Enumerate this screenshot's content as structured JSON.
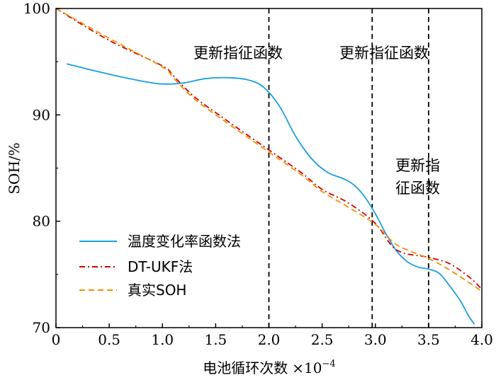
{
  "chart_data": {
    "type": "line",
    "xlabel": "电池循环次数",
    "xlabel_scale": "×10",
    "xlabel_exponent": "−4",
    "ylabel": "SOH/%",
    "xlim": [
      0,
      4.0
    ],
    "ylim": [
      70,
      100
    ],
    "x_ticks": [
      "0",
      "0.5",
      "1.0",
      "1.5",
      "2.0",
      "2.5",
      "3.0",
      "3.5",
      "4.0"
    ],
    "y_ticks": [
      "70",
      "80",
      "90",
      "100"
    ],
    "grid": false,
    "legend_position": "bottom-left",
    "vlines": [
      2.0,
      2.97,
      3.5
    ],
    "annotations": [
      "更新指征函数",
      "更新指征函数",
      "更新指",
      "征函数"
    ],
    "series": [
      {
        "name": "温度变化率函数法",
        "color": "#1a9fe0",
        "style": "solid",
        "points": [
          [
            0.1,
            94.8
          ],
          [
            0.3,
            94.3
          ],
          [
            0.6,
            93.6
          ],
          [
            0.85,
            93.1
          ],
          [
            1.0,
            92.9
          ],
          [
            1.2,
            93.0
          ],
          [
            1.4,
            93.4
          ],
          [
            1.6,
            93.5
          ],
          [
            1.8,
            93.3
          ],
          [
            1.95,
            92.6
          ],
          [
            2.1,
            90.8
          ],
          [
            2.25,
            88.0
          ],
          [
            2.4,
            85.9
          ],
          [
            2.55,
            84.6
          ],
          [
            2.7,
            84.0
          ],
          [
            2.8,
            83.4
          ],
          [
            2.9,
            82.3
          ],
          [
            3.0,
            80.7
          ],
          [
            3.1,
            78.8
          ],
          [
            3.2,
            77.2
          ],
          [
            3.3,
            76.2
          ],
          [
            3.4,
            75.7
          ],
          [
            3.5,
            75.5
          ],
          [
            3.6,
            75.1
          ],
          [
            3.7,
            73.9
          ],
          [
            3.8,
            72.5
          ],
          [
            3.87,
            71.2
          ],
          [
            3.93,
            70.3
          ]
        ]
      },
      {
        "name": "DT-UKF法",
        "color": "#d40000",
        "style": "dashdot",
        "points": [
          [
            0,
            100.0
          ],
          [
            0.5,
            97.0
          ],
          [
            1.0,
            94.6
          ],
          [
            1.1,
            93.7
          ],
          [
            1.3,
            91.7
          ],
          [
            1.6,
            89.5
          ],
          [
            2.0,
            86.7
          ],
          [
            2.3,
            84.6
          ],
          [
            2.5,
            83.0
          ],
          [
            2.75,
            81.7
          ],
          [
            3.0,
            79.8
          ],
          [
            3.2,
            77.3
          ],
          [
            3.5,
            76.6
          ],
          [
            3.7,
            76.0
          ],
          [
            3.9,
            74.6
          ],
          [
            4.0,
            73.6
          ]
        ]
      },
      {
        "name": "真实SOH",
        "color": "#f09000",
        "style": "dashed",
        "points": [
          [
            0,
            100.0
          ],
          [
            0.5,
            97.2
          ],
          [
            1.0,
            94.5
          ],
          [
            1.1,
            93.5
          ],
          [
            1.3,
            91.5
          ],
          [
            1.6,
            89.3
          ],
          [
            2.0,
            86.5
          ],
          [
            2.3,
            84.4
          ],
          [
            2.5,
            82.8
          ],
          [
            2.75,
            81.3
          ],
          [
            3.0,
            79.7
          ],
          [
            3.2,
            77.8
          ],
          [
            3.5,
            76.5
          ],
          [
            3.7,
            75.4
          ],
          [
            3.9,
            74.1
          ],
          [
            4.0,
            73.4
          ]
        ]
      }
    ]
  }
}
